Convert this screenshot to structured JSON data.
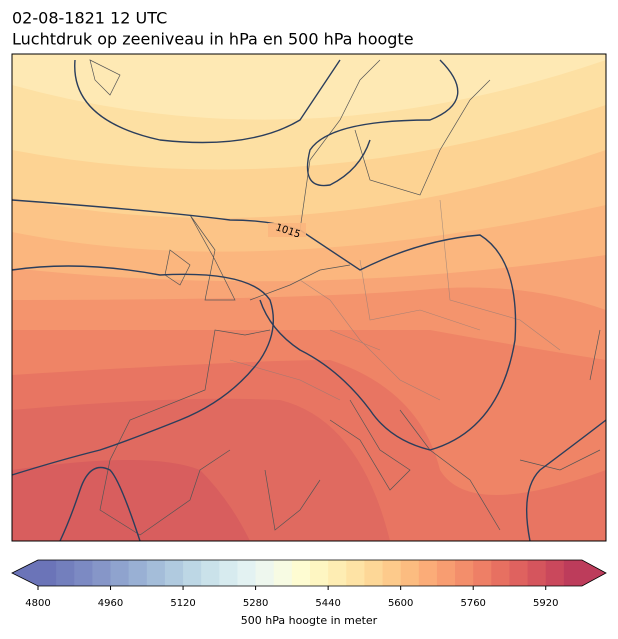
{
  "title": [
    "02-08-1821 12 UTC",
    "Luchtdruk op zeeniveau in hPa en 500 hPa hoogte"
  ],
  "contour_labels": [
    "1015"
  ],
  "colorbar": {
    "lim": [
      4800,
      6000
    ],
    "ticks": [
      4800,
      4960,
      5120,
      5280,
      5440,
      5600,
      5760,
      5920
    ],
    "colors": [
      "#6b74b8",
      "#737fbd",
      "#7c8ac3",
      "#8696c8",
      "#8fa3ce",
      "#99b0d4",
      "#a4bdd9",
      "#b0cadf",
      "#bdd7e5",
      "#cae2ea",
      "#d7ebef",
      "#e3f2f2",
      "#eef7ee",
      "#f7fbe3",
      "#fefcd2",
      "#fef6c2",
      "#feedb3",
      "#fee3a5",
      "#fdd797",
      "#fdca8b",
      "#fcbc80",
      "#fbac78",
      "#f89d71",
      "#f38e6b",
      "#ee7f66",
      "#e77061",
      "#df625f",
      "#d5555d",
      "#ca485c",
      "#bd3c5b"
    ],
    "label": "500 hPa hoogte in meter"
  }
}
